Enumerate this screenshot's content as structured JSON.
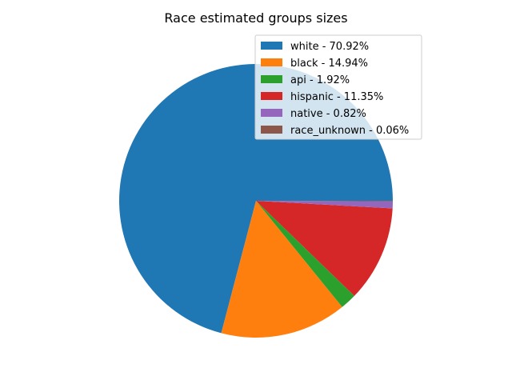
{
  "chart_data": {
    "type": "pie",
    "title": "Race estimated groups sizes",
    "legend_position": "upper-right",
    "start_angle_deg": 0,
    "direction": "counterclockwise",
    "slices": [
      {
        "label": "white - 70.92%",
        "value": 70.92,
        "color": "#1f77b4"
      },
      {
        "label": "black - 14.94%",
        "value": 14.94,
        "color": "#ff7f0e"
      },
      {
        "label": "api - 1.92%",
        "value": 1.92,
        "color": "#2ca02c"
      },
      {
        "label": "hispanic - 11.35%",
        "value": 11.35,
        "color": "#d62728"
      },
      {
        "label": "native - 0.82%",
        "value": 0.82,
        "color": "#9467bd"
      },
      {
        "label": "race_unknown - 0.06%",
        "value": 0.06,
        "color": "#8c564b"
      }
    ]
  }
}
